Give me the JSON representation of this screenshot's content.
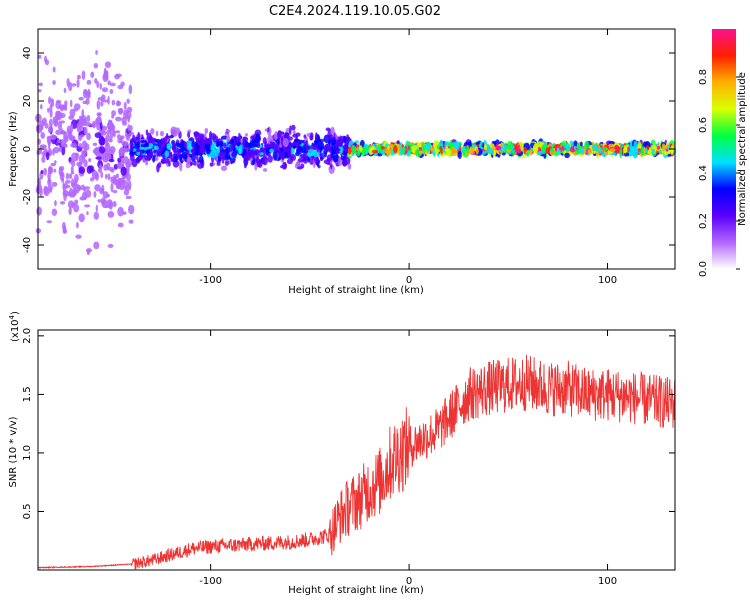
{
  "figure": {
    "title": "C2E4.2024.119.10.05.G02"
  },
  "chart_data": [
    {
      "type": "heatmap",
      "xlabel": "Height of straight line (km)",
      "ylabel": "Frequency (Hz)",
      "xlim": [
        -187,
        134
      ],
      "ylim": [
        -50,
        50
      ],
      "x_ticks": [
        -100,
        0,
        100
      ],
      "y_ticks": [
        -40,
        -20,
        0,
        20,
        40
      ],
      "colorbar": {
        "label": "Normalized spectral amplitude",
        "range": [
          0.0,
          1.0
        ],
        "ticks": [
          "0.0",
          "0.2",
          "0.4",
          "0.6",
          "0.8"
        ],
        "colors": [
          "#ffffff",
          "#b366ff",
          "#5a00ff",
          "#0000ff",
          "#00e0ff",
          "#00ff40",
          "#d8ff00",
          "#ffb000",
          "#ff2000",
          "#ff1090"
        ]
      },
      "segments": [
        {
          "x_range": [
            -187,
            -140
          ],
          "character": "diffuse purple noise",
          "amplitude": 0.15,
          "freq_spread": 50
        },
        {
          "x_range": [
            -140,
            -30
          ],
          "character": "broad band around 0 Hz",
          "amplitude": 0.35,
          "freq_spread": 10
        },
        {
          "x_range": [
            -30,
            134
          ],
          "character": "narrow band at 0 Hz",
          "amplitude": 0.9,
          "freq_spread": 3
        }
      ]
    },
    {
      "type": "line",
      "xlabel": "Height of straight line (km)",
      "ylabel": "SNR (10 * v/v)",
      "y_multiplier": "(x10",
      "y_multiplier_exp": "4",
      "y_multiplier_close": ")",
      "xlim": [
        -187,
        134
      ],
      "ylim": [
        0,
        2.05
      ],
      "x_ticks": [
        -100,
        0,
        100
      ],
      "y_ticks": [
        "0.5",
        "1.0",
        "1.5",
        "2.0"
      ],
      "color": "#ee3333",
      "series": [
        {
          "x": [
            -187,
            -160,
            -140,
            -130,
            -120,
            -110,
            -100,
            -80,
            -60,
            -50,
            -40,
            -35,
            -30,
            -25,
            -20,
            -15,
            -10,
            -5,
            0,
            5,
            10,
            15,
            20,
            25,
            30,
            40,
            50,
            60,
            70,
            80,
            90,
            100,
            110,
            120,
            134
          ],
          "values": [
            0.02,
            0.03,
            0.05,
            0.08,
            0.13,
            0.18,
            0.2,
            0.22,
            0.24,
            0.26,
            0.3,
            0.45,
            0.55,
            0.6,
            0.7,
            0.75,
            0.9,
            1.0,
            1.05,
            1.1,
            1.15,
            1.2,
            1.3,
            1.4,
            1.5,
            1.55,
            1.58,
            1.6,
            1.55,
            1.55,
            1.5,
            1.5,
            1.48,
            1.45,
            1.42
          ]
        }
      ]
    }
  ]
}
